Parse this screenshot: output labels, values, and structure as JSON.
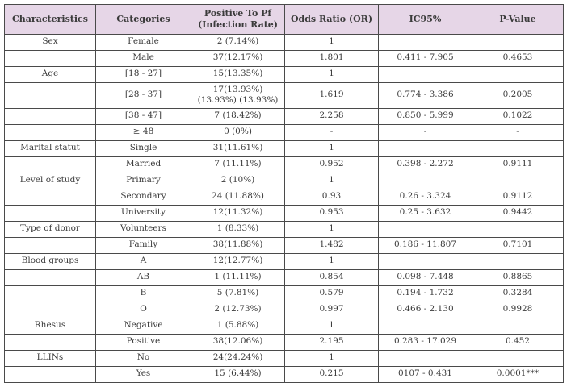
{
  "colors": {
    "header_bg": "#e6d6e7",
    "border": "#4a4a4a",
    "text": "#3b3b3b",
    "row_bg": "#ffffff"
  },
  "table": {
    "headers": [
      "Characteristics",
      "Categories",
      "Positive To Pf (Infection Rate)",
      "Odds Ratio (OR)",
      "IC95%",
      "P-Value"
    ],
    "rows": [
      [
        "Sex",
        "Female",
        "2 (7.14%)",
        "1",
        "",
        ""
      ],
      [
        "",
        "Male",
        "37(12.17%)",
        "1.801",
        "0.411 - 7.905",
        "0.4653"
      ],
      [
        "Age",
        "[18 - 27]",
        "15(13.35%)",
        "1",
        "",
        ""
      ],
      [
        "",
        "[28 - 37]",
        "17(13.93%) (13.93%) (13.93%)",
        "1.619",
        "0.774 - 3.386",
        "0.2005"
      ],
      [
        "",
        "[38 - 47]",
        "7 (18.42%)",
        "2.258",
        "0.850 - 5.999",
        "0.1022"
      ],
      [
        "",
        "≥ 48",
        "0 (0%)",
        "-",
        "-",
        "-"
      ],
      [
        "Marital statut",
        "Single",
        "31(11.61%)",
        "1",
        "",
        ""
      ],
      [
        "",
        "Married",
        "7 (11.11%)",
        "0.952",
        "0.398 - 2.272",
        "0.9111"
      ],
      [
        "Level of study",
        "Primary",
        "2 (10%)",
        "1",
        "",
        ""
      ],
      [
        "",
        "Secondary",
        "24 (11.88%)",
        "0.93",
        "0.26 - 3.324",
        "0.9112"
      ],
      [
        "",
        "University",
        "12(11.32%)",
        "0.953",
        "0.25 - 3.632",
        "0.9442"
      ],
      [
        "Type of donor",
        "Volunteers",
        "1 (8.33%)",
        "1",
        "",
        ""
      ],
      [
        "",
        "Family",
        "38(11.88%)",
        "1.482",
        "0.186 - 11.807",
        "0.7101"
      ],
      [
        "Blood groups",
        "A",
        "12(12.77%)",
        "1",
        "",
        ""
      ],
      [
        "",
        "AB",
        "1 (11.11%)",
        "0.854",
        "0.098 - 7.448",
        "0.8865"
      ],
      [
        "",
        "B",
        "5 (7.81%)",
        "0.579",
        "0.194 - 1.732",
        "0.3284"
      ],
      [
        "",
        "O",
        "2 (12.73%)",
        "0.997",
        "0.466 - 2.130",
        "0.9928"
      ],
      [
        "Rhesus",
        "Negative",
        "1 (5.88%)",
        "1",
        "",
        ""
      ],
      [
        "",
        "Positive",
        "38(12.06%)",
        "2.195",
        "0.283 - 17.029",
        "0.452"
      ],
      [
        "LLINs",
        "No",
        "24(24.24%)",
        "1",
        "",
        ""
      ],
      [
        "",
        "Yes",
        "15 (6.44%)",
        "0.215",
        "0107 - 0.431",
        "0.0001***"
      ]
    ]
  }
}
